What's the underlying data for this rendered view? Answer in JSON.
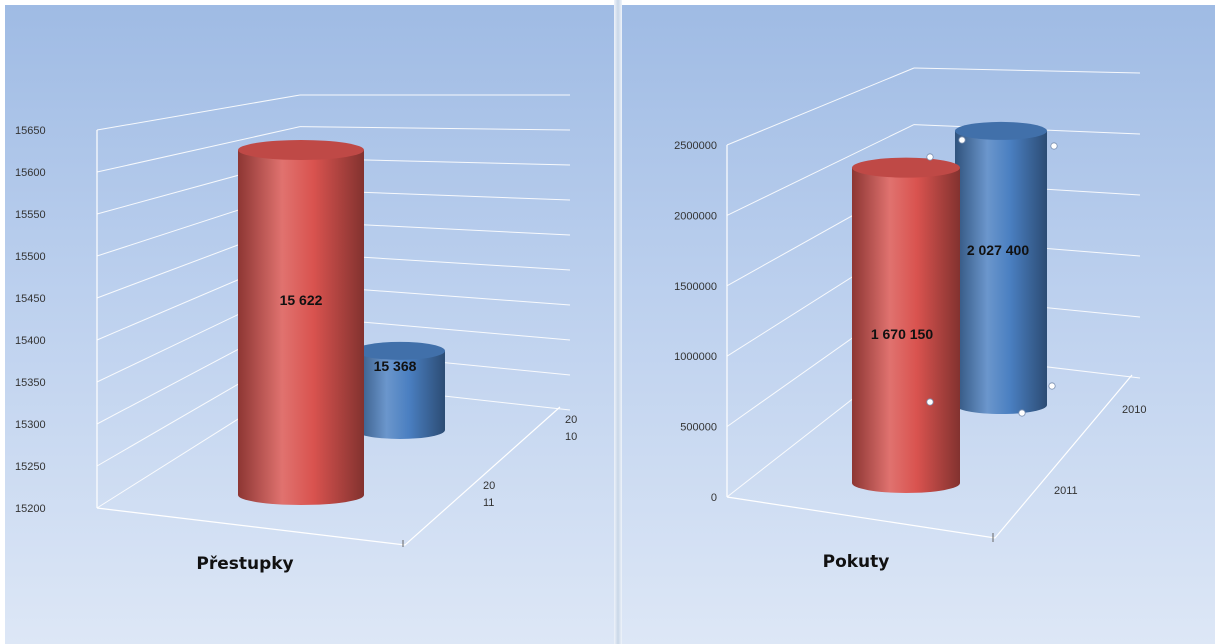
{
  "charts": [
    {
      "title": "Přestupky",
      "type": "bar",
      "ylim": [
        15200,
        15650
      ],
      "yticks": [
        "15200",
        "15250",
        "15300",
        "15350",
        "15400",
        "15450",
        "15500",
        "15550",
        "15600",
        "15650"
      ],
      "depth_labels": [
        "20\n10",
        "20\n11"
      ],
      "bars": [
        {
          "series": "2011",
          "value": 15622,
          "label": "15 622",
          "color": "#d9534f"
        },
        {
          "series": "2010",
          "value": 15368,
          "label": "15 368",
          "color": "#4a7fc1"
        }
      ]
    },
    {
      "title": "Pokuty",
      "type": "bar",
      "ylim": [
        0,
        2500000
      ],
      "yticks": [
        "0",
        "500000",
        "1000000",
        "1500000",
        "2000000",
        "2500000"
      ],
      "depth_labels": [
        "2010",
        "2011"
      ],
      "bars": [
        {
          "series": "2011",
          "value": 1670150,
          "label": "1 670 150",
          "color": "#d9534f"
        },
        {
          "series": "2010",
          "value": 2027400,
          "label": "2 027 400",
          "color": "#4a7fc1"
        }
      ]
    }
  ],
  "chart_data": [
    {
      "type": "bar",
      "title": "Přestupky",
      "categories": [
        "2011",
        "2010"
      ],
      "values": [
        15622,
        15368
      ],
      "ylim": [
        15200,
        15650
      ],
      "data_labels": [
        "15 622",
        "15 368"
      ],
      "legend": "none",
      "grid": true
    },
    {
      "type": "bar",
      "title": "Pokuty",
      "categories": [
        "2011",
        "2010"
      ],
      "values": [
        1670150,
        2027400
      ],
      "ylim": [
        0,
        2500000
      ],
      "data_labels": [
        "1 670 150",
        "2 027 400"
      ],
      "legend": "none",
      "grid": true
    }
  ]
}
